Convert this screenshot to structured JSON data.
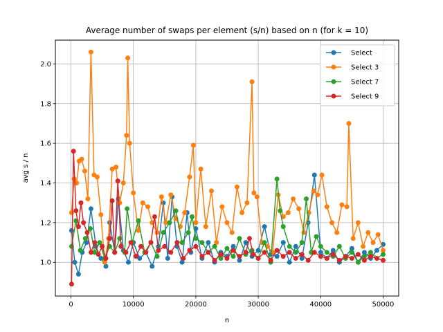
{
  "chart_data": {
    "type": "line",
    "title": "Average number of swaps per element (s/n) based on n (for k = 10)",
    "xlabel": "n",
    "ylabel": "avg s / n",
    "xlim": [
      -2500,
      52500
    ],
    "ylim": [
      0.83,
      2.12
    ],
    "xticks": [
      0,
      10000,
      20000,
      30000,
      40000,
      50000
    ],
    "xtick_labels": [
      "0",
      "10000",
      "20000",
      "30000",
      "40000",
      "50000"
    ],
    "yticks": [
      1.0,
      1.2,
      1.4,
      1.6,
      1.8,
      2.0
    ],
    "ytick_labels": [
      "1.0",
      "1.2",
      "1.4",
      "1.6",
      "1.8",
      "2.0"
    ],
    "grid": true,
    "legend_position": "top-right",
    "markers": true,
    "series": [
      {
        "name": "Select",
        "color": "#1f77b4",
        "x": [
          100,
          600,
          1200,
          1800,
          2500,
          3200,
          4000,
          4800,
          5600,
          6200,
          7000,
          7600,
          8400,
          9200,
          10000,
          11000,
          12000,
          13000,
          14000,
          14800,
          15500,
          16200,
          17000,
          17800,
          18600,
          19200,
          20000,
          21000,
          22000,
          23000,
          24000,
          25000,
          26000,
          27000,
          28000,
          29000,
          30000,
          31000,
          32000,
          33000,
          34000,
          35000,
          36000,
          37000,
          38000,
          39000,
          40000,
          41000,
          42000,
          43000,
          44000,
          45000,
          46000,
          47000,
          48000,
          49000,
          50000
        ],
        "values": [
          1.16,
          1.0,
          0.94,
          1.05,
          1.1,
          1.27,
          1.08,
          1.02,
          0.98,
          1.2,
          1.05,
          1.32,
          1.06,
          1.0,
          1.1,
          1.02,
          1.05,
          0.98,
          1.08,
          1.3,
          1.02,
          1.33,
          1.08,
          1.0,
          1.25,
          1.05,
          1.17,
          1.02,
          1.1,
          1.0,
          1.05,
          1.03,
          1.08,
          1.01,
          1.1,
          1.03,
          1.06,
          1.18,
          1.04,
          1.03,
          1.1,
          1.0,
          1.08,
          1.02,
          1.2,
          1.44,
          1.05,
          1.02,
          1.06,
          1.0,
          1.03,
          1.07,
          1.0,
          1.05,
          1.02,
          1.06,
          1.09
        ]
      },
      {
        "name": "Select 3",
        "color": "#ff7f0e",
        "x": [
          100,
          500,
          900,
          1300,
          1700,
          2200,
          2700,
          3200,
          3700,
          4200,
          4800,
          5400,
          6000,
          6600,
          7200,
          7800,
          8400,
          8900,
          9100,
          9400,
          10000,
          10800,
          11500,
          12300,
          13000,
          13800,
          14500,
          15200,
          16000,
          16800,
          17500,
          18200,
          19000,
          19600,
          20000,
          20800,
          21600,
          22500,
          23300,
          24200,
          25000,
          25800,
          26600,
          27400,
          28200,
          29000,
          29300,
          29800,
          30600,
          31500,
          32300,
          33200,
          34000,
          34800,
          35600,
          36500,
          37300,
          38100,
          38900,
          39500,
          40200,
          41000,
          41800,
          42600,
          43400,
          44200,
          44500,
          45200,
          46000,
          46800,
          47600,
          48400,
          49200,
          50000
        ],
        "values": [
          1.25,
          1.42,
          1.4,
          1.51,
          1.52,
          1.46,
          1.32,
          2.06,
          1.44,
          1.43,
          1.24,
          1.0,
          1.12,
          1.47,
          1.48,
          1.3,
          1.4,
          1.64,
          2.03,
          1.6,
          1.35,
          1.16,
          1.3,
          1.28,
          1.2,
          1.15,
          1.33,
          1.2,
          1.34,
          1.22,
          1.18,
          1.25,
          1.43,
          1.59,
          1.2,
          1.47,
          1.18,
          1.36,
          1.1,
          1.28,
          1.2,
          1.15,
          1.38,
          1.25,
          1.3,
          1.91,
          1.35,
          1.33,
          1.1,
          1.08,
          1.05,
          1.34,
          1.23,
          1.25,
          1.32,
          1.27,
          1.15,
          1.25,
          1.36,
          1.34,
          1.44,
          1.28,
          1.2,
          1.15,
          1.29,
          1.28,
          1.7,
          1.12,
          1.2,
          1.08,
          1.15,
          1.1,
          1.14,
          1.06
        ]
      },
      {
        "name": "Select 7",
        "color": "#2ca02c",
        "x": [
          100,
          800,
          1500,
          2300,
          3100,
          3800,
          4600,
          5400,
          6200,
          7000,
          7800,
          8600,
          9000,
          9800,
          10800,
          11800,
          12800,
          13800,
          14800,
          15800,
          16800,
          17800,
          18800,
          19400,
          20000,
          21000,
          22000,
          23000,
          24000,
          25000,
          26000,
          27000,
          28000,
          29000,
          30000,
          31000,
          32000,
          33000,
          33500,
          34000,
          35000,
          36000,
          37000,
          37700,
          38500,
          39300,
          40000,
          41000,
          42000,
          43000,
          44000,
          45000,
          46000,
          47000,
          48000,
          49000,
          50000
        ],
        "values": [
          1.08,
          1.21,
          1.06,
          1.12,
          1.17,
          1.05,
          1.1,
          1.02,
          1.08,
          1.05,
          1.12,
          1.05,
          1.27,
          1.1,
          1.21,
          1.05,
          1.1,
          1.03,
          1.15,
          1.2,
          1.26,
          1.1,
          1.15,
          1.23,
          1.12,
          1.1,
          1.05,
          1.08,
          1.02,
          1.07,
          1.03,
          1.12,
          1.04,
          1.06,
          1.02,
          1.1,
          1.0,
          1.42,
          1.26,
          1.18,
          1.08,
          1.05,
          1.1,
          1.32,
          1.05,
          1.13,
          1.08,
          1.05,
          1.03,
          1.08,
          1.02,
          1.05,
          1.0,
          1.03,
          1.05,
          1.02,
          1.04
        ]
      },
      {
        "name": "Select 9",
        "color": "#d62728",
        "x": [
          100,
          400,
          800,
          1200,
          1600,
          2000,
          2600,
          3200,
          3800,
          4400,
          5000,
          5600,
          6200,
          6600,
          7000,
          7500,
          8000,
          8800,
          9600,
          10400,
          11200,
          12000,
          12800,
          13400,
          14000,
          15000,
          16000,
          17000,
          18000,
          19000,
          20000,
          21000,
          22000,
          23000,
          24000,
          25000,
          26000,
          27000,
          28000,
          28600,
          29200,
          30000,
          31000,
          32000,
          33000,
          34000,
          35000,
          36000,
          37000,
          38000,
          39000,
          40000,
          41000,
          42000,
          43000,
          44000,
          45000,
          46000,
          47000,
          48000,
          49000,
          50000
        ],
        "values": [
          0.89,
          1.56,
          1.26,
          1.18,
          1.3,
          1.2,
          1.15,
          1.05,
          1.1,
          1.04,
          1.08,
          1.02,
          1.12,
          1.31,
          1.05,
          1.41,
          1.08,
          1.05,
          1.1,
          1.03,
          1.08,
          1.05,
          1.1,
          1.23,
          1.06,
          1.08,
          1.05,
          1.1,
          1.02,
          1.06,
          1.08,
          1.03,
          1.05,
          1.01,
          1.04,
          1.02,
          1.06,
          1.03,
          1.05,
          1.12,
          1.04,
          1.02,
          1.05,
          1.01,
          1.06,
          1.03,
          1.05,
          1.02,
          1.04,
          1.01,
          1.05,
          1.03,
          1.02,
          1.04,
          1.01,
          1.03,
          1.02,
          1.04,
          1.01,
          1.03,
          1.02,
          1.01
        ]
      }
    ]
  }
}
